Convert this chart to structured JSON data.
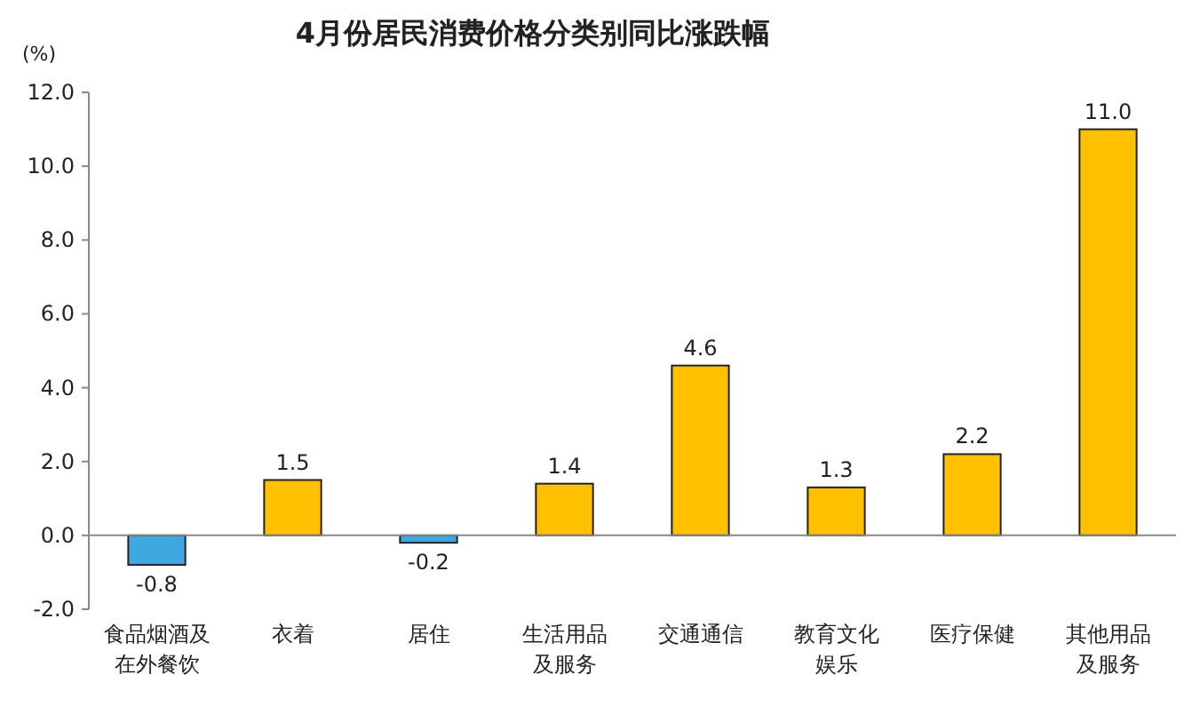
{
  "chart_data": {
    "type": "bar",
    "title": "4月份居民消费价格分类别同比涨跌幅",
    "ylabel": "(%)",
    "categories": [
      "食品烟酒及在外餐饮",
      "衣着",
      "居住",
      "生活用品及服务",
      "交通通信",
      "教育文化娱乐",
      "医疗保健",
      "其他用品及服务"
    ],
    "values": [
      -0.8,
      1.5,
      -0.2,
      1.4,
      4.6,
      1.3,
      2.2,
      11.0
    ],
    "colors": [
      "#3ea8e0",
      "#ffc000",
      "#3ea8e0",
      "#ffc000",
      "#ffc000",
      "#ffc000",
      "#ffc000",
      "#ffc000"
    ],
    "value_labels": [
      "-0.8",
      "1.5",
      "-0.2",
      "1.4",
      "4.6",
      "1.3",
      "2.2",
      "11.0"
    ],
    "ylim": [
      -2,
      12
    ],
    "yticks": [
      {
        "value": -2,
        "label": "-2.0"
      },
      {
        "value": 0,
        "label": "0.0"
      },
      {
        "value": 2,
        "label": "2.0"
      },
      {
        "value": 4,
        "label": "4.0"
      },
      {
        "value": 6,
        "label": "6.0"
      },
      {
        "value": 8,
        "label": "8.0"
      },
      {
        "value": 10,
        "label": "10.0"
      },
      {
        "value": 12,
        "label": "12.0"
      }
    ],
    "tick_labels": true
  }
}
